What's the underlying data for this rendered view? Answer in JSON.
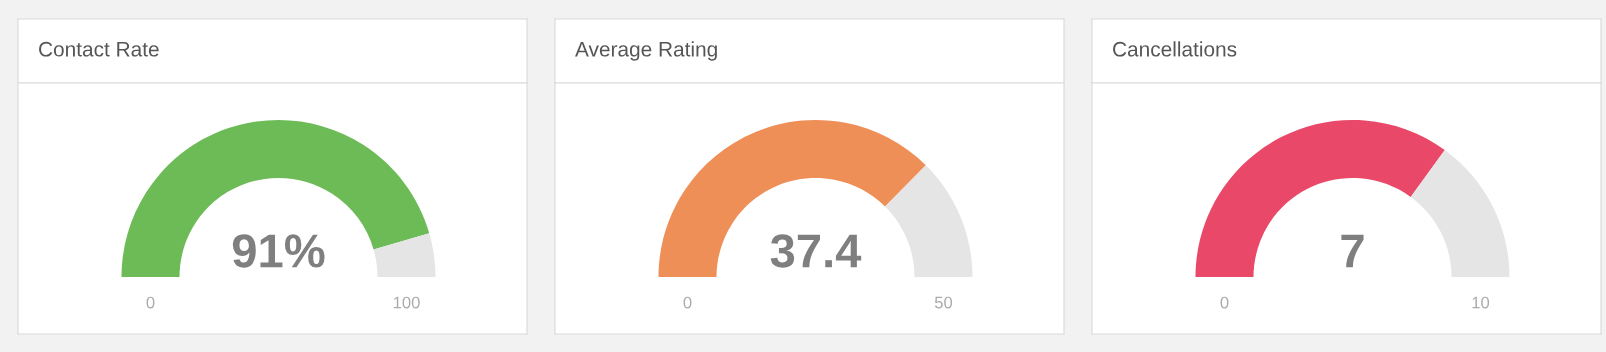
{
  "chart_data": [
    {
      "type": "donut",
      "title": "Contact Rate",
      "categories": [
        null,
        null
      ],
      "values": [
        91,
        9
      ],
      "colors": [
        "#6dbb57",
        "#e6e5e5"
      ],
      "value_labels": [
        "91%",
        null
      ],
      "annotations": [
        "0",
        "100"
      ]
    },
    {
      "type": "donut",
      "title": "Average Rating",
      "categories": [
        null,
        null
      ],
      "values": [
        37.4,
        12.6
      ],
      "colors": [
        "#ee8f58",
        "#e6e5e5"
      ],
      "value_labels": [
        "37.4",
        null
      ],
      "annotations": [
        "0",
        "50"
      ]
    },
    {
      "type": "donut",
      "title": "Cancellations",
      "categories": [
        null,
        null
      ],
      "values": [
        7,
        3
      ],
      "colors": [
        "#ea4869",
        "#e6e5e5"
      ],
      "value_labels": [
        "7",
        null
      ],
      "annotations": [
        "0",
        "10"
      ]
    }
  ]
}
